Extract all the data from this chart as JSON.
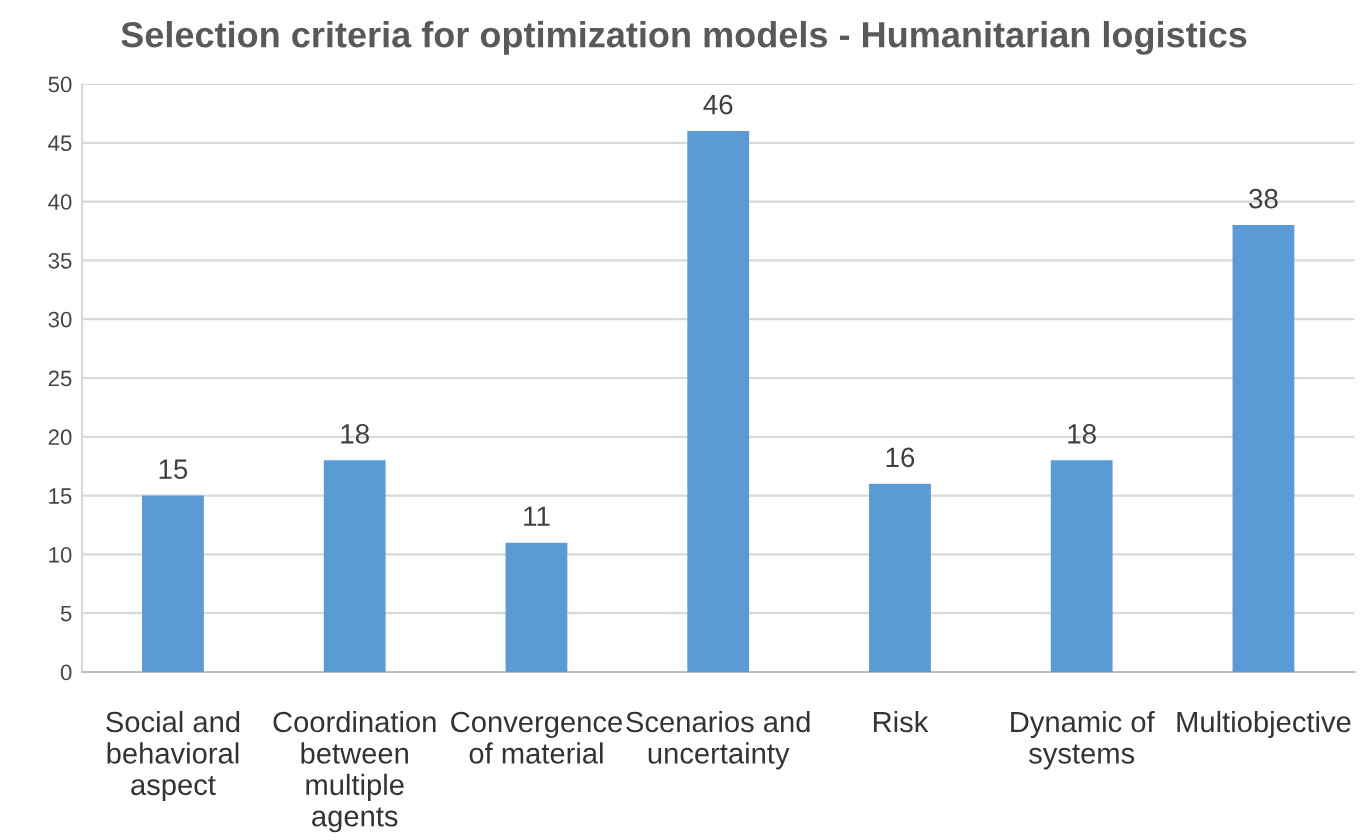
{
  "chart_data": {
    "type": "bar",
    "title": "Selection criteria for optimization models - Humanitarian logistics",
    "categories": [
      "Social and behavioral aspect",
      "Coordination between multiple agents",
      "Convergence of material",
      "Scenarios and uncertainty",
      "Risk",
      "Dynamic of systems",
      "Multiobjective"
    ],
    "values": [
      15,
      18,
      11,
      46,
      16,
      18,
      38
    ],
    "color": "#5b9bd5",
    "ylim": [
      0,
      50
    ],
    "yticks": [
      0,
      5,
      10,
      15,
      20,
      25,
      30,
      35,
      40,
      45,
      50
    ],
    "grid": "y",
    "data_labels": true
  }
}
